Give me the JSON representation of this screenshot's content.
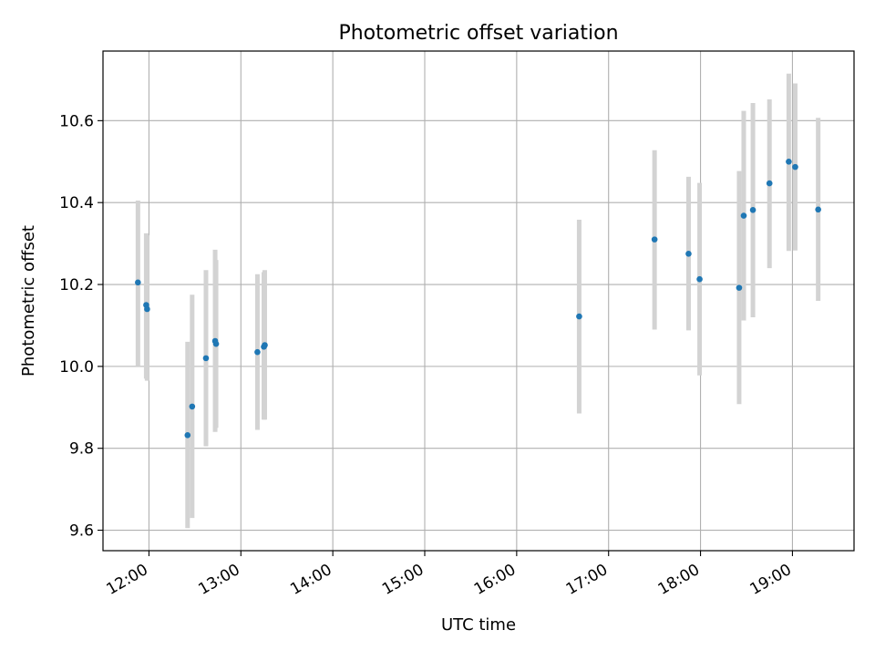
{
  "chart_data": {
    "type": "scatter",
    "title": "Photometric offset variation",
    "xlabel": "UTC time",
    "ylabel": "Photometric offset",
    "x_unit": "hours UTC",
    "xlim": [
      11.5,
      19.67
    ],
    "ylim": [
      9.55,
      10.77
    ],
    "grid": true,
    "x_ticks": [
      12,
      13,
      14,
      15,
      16,
      17,
      18,
      19
    ],
    "x_tick_labels": [
      "12:00",
      "13:00",
      "14:00",
      "15:00",
      "16:00",
      "17:00",
      "18:00",
      "19:00"
    ],
    "y_ticks": [
      9.6,
      9.8,
      10.0,
      10.2,
      10.4,
      10.6
    ],
    "y_tick_labels": [
      "9.6",
      "9.8",
      "10.0",
      "10.2",
      "10.4",
      "10.6"
    ],
    "series": [
      {
        "marker_color": "#1f77b4",
        "errorbar_color": "#d3d3d3",
        "points": [
          {
            "x": 11.88,
            "y": 10.205,
            "lo": 10.0,
            "hi": 10.405
          },
          {
            "x": 11.97,
            "y": 10.15,
            "lo": 9.97,
            "hi": 10.325
          },
          {
            "x": 11.98,
            "y": 10.14,
            "lo": 9.965,
            "hi": 10.32
          },
          {
            "x": 12.42,
            "y": 9.832,
            "lo": 9.605,
            "hi": 10.06
          },
          {
            "x": 12.47,
            "y": 9.902,
            "lo": 9.63,
            "hi": 10.175
          },
          {
            "x": 12.62,
            "y": 10.02,
            "lo": 9.805,
            "hi": 10.235
          },
          {
            "x": 12.72,
            "y": 10.062,
            "lo": 9.84,
            "hi": 10.285
          },
          {
            "x": 12.73,
            "y": 10.055,
            "lo": 9.85,
            "hi": 10.26
          },
          {
            "x": 13.18,
            "y": 10.035,
            "lo": 9.845,
            "hi": 10.225
          },
          {
            "x": 13.25,
            "y": 10.048,
            "lo": 9.87,
            "hi": 10.23
          },
          {
            "x": 13.26,
            "y": 10.052,
            "lo": 9.87,
            "hi": 10.235
          },
          {
            "x": 16.68,
            "y": 10.122,
            "lo": 9.885,
            "hi": 10.358
          },
          {
            "x": 17.5,
            "y": 10.31,
            "lo": 10.09,
            "hi": 10.528
          },
          {
            "x": 17.87,
            "y": 10.275,
            "lo": 10.088,
            "hi": 10.463
          },
          {
            "x": 17.99,
            "y": 10.213,
            "lo": 9.978,
            "hi": 10.448
          },
          {
            "x": 18.42,
            "y": 10.192,
            "lo": 9.908,
            "hi": 10.477
          },
          {
            "x": 18.47,
            "y": 10.368,
            "lo": 10.112,
            "hi": 10.624
          },
          {
            "x": 18.57,
            "y": 10.382,
            "lo": 10.12,
            "hi": 10.643
          },
          {
            "x": 18.75,
            "y": 10.447,
            "lo": 10.24,
            "hi": 10.652
          },
          {
            "x": 18.96,
            "y": 10.5,
            "lo": 10.282,
            "hi": 10.715
          },
          {
            "x": 19.03,
            "y": 10.487,
            "lo": 10.283,
            "hi": 10.691
          },
          {
            "x": 19.28,
            "y": 10.383,
            "lo": 10.16,
            "hi": 10.607
          }
        ]
      }
    ]
  }
}
